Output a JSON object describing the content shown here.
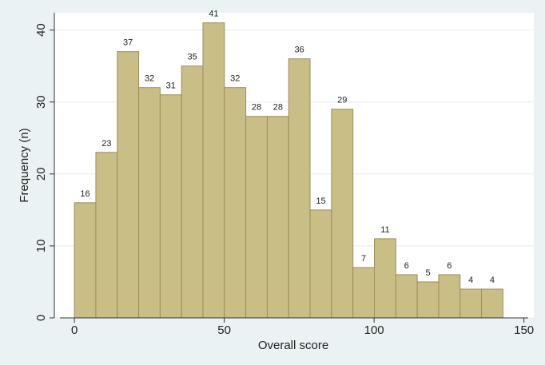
{
  "chart_data": {
    "type": "histogram",
    "x_label": "Overall score",
    "y_label": "Frequency (n)",
    "bins": [
      0,
      7.15,
      14.3,
      21.45,
      28.6,
      35.75,
      42.9,
      50.05,
      57.2,
      64.35,
      71.5,
      78.65,
      85.8,
      92.95,
      100.1,
      107.25,
      114.4,
      121.55,
      128.7,
      135.85,
      143
    ],
    "values": [
      16,
      23,
      37,
      32,
      31,
      35,
      41,
      32,
      28,
      28,
      36,
      15,
      29,
      7,
      11,
      6,
      5,
      6,
      4,
      4
    ],
    "color": "#c9be86",
    "edge_color": "#9c8f5a",
    "xlim": [
      -6.7,
      153.3
    ],
    "xticks": [
      0,
      50,
      100,
      150
    ],
    "ylim": [
      0,
      42.4
    ],
    "yticks": [
      0,
      10,
      20,
      30,
      40
    ],
    "grid": true
  }
}
